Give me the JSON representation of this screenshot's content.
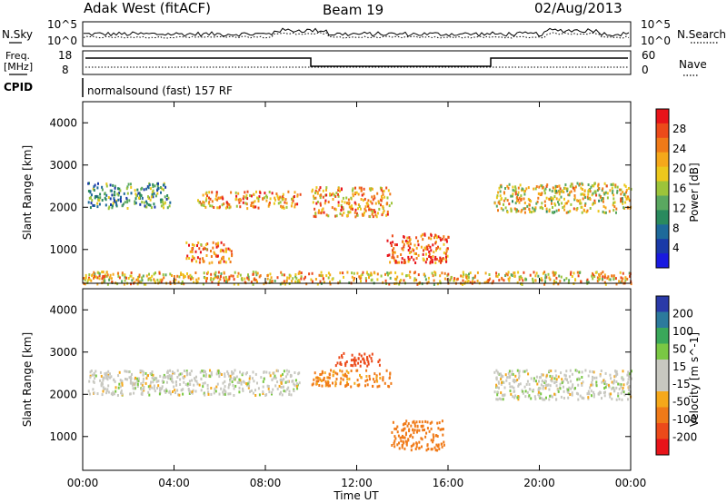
{
  "header": {
    "title": "Adak West (fitACF)",
    "beam": "Beam 19",
    "date": "02/Aug/2013"
  },
  "top_panels": {
    "nsky_label": "N.Sky",
    "nsearch_label": "N.Search",
    "freq_label_line1": "Freq.",
    "freq_label_line2": "[MHz]",
    "nave_label": "Nave",
    "cpid_label": "CPID",
    "cpid_text": "normalsound (fast) 157 RF",
    "noise_ticks_left": [
      "10^5",
      "10^0"
    ],
    "noise_ticks_right": [
      "10^5",
      "10^0"
    ],
    "freq_ticks": [
      "18",
      "8"
    ],
    "nave_ticks": [
      "60",
      "0"
    ]
  },
  "power_colorbar": {
    "label": "Power [dB]",
    "ticks": [
      "28",
      "24",
      "20",
      "16",
      "12",
      "8",
      "4"
    ],
    "colors": [
      "#e8141a",
      "#ec4a1a",
      "#f07a18",
      "#f5a81a",
      "#ecc81c",
      "#9cc43a",
      "#5aa860",
      "#2a8a5e",
      "#1e6a9a",
      "#1a3aa8",
      "#1a1ae0"
    ]
  },
  "velocity_colorbar": {
    "label": "Velocity [m s^-1]",
    "ticks": [
      "200",
      "100",
      "50",
      "15",
      "-15",
      "-50",
      "-100",
      "-200"
    ],
    "colors": [
      "#2a3aa8",
      "#2c7a9c",
      "#3aa85a",
      "#7ac844",
      "#c8c8c0",
      "#c8c8c0",
      "#f5a81a",
      "#f07a18",
      "#ec4a1a",
      "#e8141a"
    ]
  },
  "chart_data": [
    {
      "type": "heatmap",
      "panel": "power",
      "ylabel": "Slant Range [km]",
      "yticks": [
        "4000",
        "3000",
        "2000",
        "1000"
      ],
      "ylim": [
        200,
        4500
      ],
      "xlim": [
        "00:00",
        "24:00"
      ],
      "scatter_regions": [
        {
          "x_start_h": 0.2,
          "x_end_h": 3.8,
          "y_km": [
            2000,
            2600
          ],
          "power_db": 10
        },
        {
          "x_start_h": 5.0,
          "x_end_h": 9.5,
          "y_km": [
            2000,
            2400
          ],
          "power_db": 22
        },
        {
          "x_start_h": 4.5,
          "x_end_h": 6.5,
          "y_km": [
            700,
            1200
          ],
          "power_db": 24
        },
        {
          "x_start_h": 10.0,
          "x_end_h": 13.5,
          "y_km": [
            1800,
            2500
          ],
          "power_db": 22
        },
        {
          "x_start_h": 13.3,
          "x_end_h": 16.0,
          "y_km": [
            700,
            1400
          ],
          "power_db": 26
        },
        {
          "x_start_h": 18.0,
          "x_end_h": 24.0,
          "y_km": [
            1900,
            2600
          ],
          "power_db": 18
        },
        {
          "x_start_h": 0.0,
          "x_end_h": 24.0,
          "y_km": [
            200,
            500
          ],
          "power_db": 20
        }
      ]
    },
    {
      "type": "heatmap",
      "panel": "velocity",
      "xlabel": "Time UT",
      "ylabel": "Slant Range [km]",
      "yticks": [
        "4000",
        "3000",
        "2000",
        "1000"
      ],
      "xticks": [
        "00:00",
        "04:00",
        "08:00",
        "12:00",
        "16:00",
        "20:00",
        "00:00"
      ],
      "ylim": [
        200,
        4500
      ],
      "xlim": [
        "00:00",
        "24:00"
      ],
      "scatter_regions": [
        {
          "x_start_h": 0.2,
          "x_end_h": 9.5,
          "y_km": [
            2000,
            2600
          ],
          "velocity": 0
        },
        {
          "x_start_h": 10.0,
          "x_end_h": 13.5,
          "y_km": [
            2200,
            2600
          ],
          "velocity": -60
        },
        {
          "x_start_h": 11.0,
          "x_end_h": 13.0,
          "y_km": [
            2700,
            3000
          ],
          "velocity": -150
        },
        {
          "x_start_h": 13.5,
          "x_end_h": 15.8,
          "y_km": [
            700,
            1400
          ],
          "velocity": -70
        },
        {
          "x_start_h": 18.0,
          "x_end_h": 24.0,
          "y_km": [
            1900,
            2600
          ],
          "velocity": 0
        }
      ]
    }
  ]
}
